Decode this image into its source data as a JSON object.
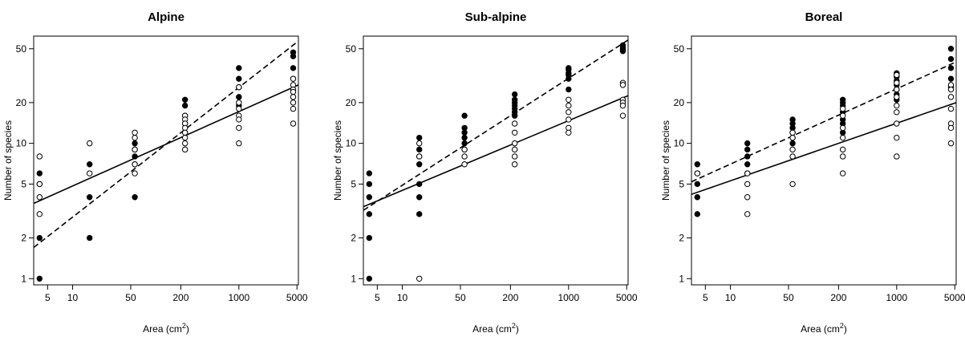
{
  "chart_data": [
    {
      "type": "scatter",
      "title": "Alpine",
      "xlabel": "Area (cm",
      "xlabel_sup": "2",
      "xlabel_close": ")",
      "ylabel": "Number of species",
      "x_scale": "log",
      "y_scale": "log",
      "xlim": [
        3.4,
        5200
      ],
      "ylim": [
        0.9,
        62
      ],
      "x_ticks": [
        5,
        10,
        50,
        200,
        1000,
        5000
      ],
      "x_tick_labels": [
        "5",
        "10",
        "50",
        "200",
        "1000",
        "5000"
      ],
      "y_ticks": [
        1,
        2,
        5,
        10,
        20,
        50
      ],
      "y_tick_labels": [
        "1",
        "2",
        "5",
        "10",
        "20",
        "50"
      ],
      "series": [
        {
          "marker": "filled-circle",
          "x": [
            4,
            4,
            4,
            4,
            16,
            16,
            16,
            56,
            56,
            56,
            56,
            56,
            225,
            225,
            225,
            225,
            225,
            1000,
            1000,
            1000,
            1000,
            1000,
            4500,
            4500,
            4500,
            4500
          ],
          "y": [
            6,
            5,
            2,
            1,
            7,
            4,
            2,
            10,
            9,
            8,
            7,
            4,
            21,
            19,
            16,
            14,
            12,
            36,
            30,
            26,
            22,
            19,
            47,
            44,
            36,
            30
          ]
        },
        {
          "marker": "open-circle",
          "x": [
            4,
            4,
            4,
            4,
            16,
            16,
            56,
            56,
            56,
            56,
            56,
            225,
            225,
            225,
            225,
            225,
            225,
            225,
            225,
            1000,
            1000,
            1000,
            1000,
            1000,
            1000,
            1000,
            4500,
            4500,
            4500,
            4500,
            4500,
            4500,
            4500,
            4500
          ],
          "y": [
            8,
            5,
            4,
            3,
            10,
            6,
            12,
            11,
            9,
            7,
            6,
            16,
            15,
            14,
            13,
            12,
            11,
            10,
            9,
            26,
            20,
            18,
            16,
            15,
            13,
            10,
            30,
            27,
            25,
            24,
            22,
            20,
            18,
            14
          ]
        }
      ],
      "fits": [
        {
          "style": "solid",
          "x": [
            3.4,
            5200
          ],
          "y": [
            3.6,
            27
          ]
        },
        {
          "style": "dashed",
          "x": [
            3.4,
            5200
          ],
          "y": [
            1.7,
            57
          ]
        }
      ]
    },
    {
      "type": "scatter",
      "title": "Sub-alpine",
      "xlabel": "Area (cm",
      "xlabel_sup": "2",
      "xlabel_close": ")",
      "ylabel": "Number of species",
      "x_scale": "log",
      "y_scale": "log",
      "xlim": [
        3.4,
        5200
      ],
      "ylim": [
        0.9,
        62
      ],
      "x_ticks": [
        5,
        10,
        50,
        200,
        1000,
        5000
      ],
      "x_tick_labels": [
        "5",
        "10",
        "50",
        "200",
        "1000",
        "5000"
      ],
      "y_ticks": [
        1,
        2,
        5,
        10,
        20,
        50
      ],
      "y_tick_labels": [
        "1",
        "2",
        "5",
        "10",
        "20",
        "50"
      ],
      "series": [
        {
          "marker": "filled-circle",
          "x": [
            4,
            4,
            4,
            4,
            4,
            4,
            16,
            16,
            16,
            16,
            16,
            16,
            16,
            56,
            56,
            56,
            56,
            56,
            56,
            225,
            225,
            225,
            225,
            225,
            225,
            225,
            1000,
            1000,
            1000,
            1000,
            1000,
            1000,
            4500,
            4500,
            4500,
            4500,
            4500
          ],
          "y": [
            6,
            5,
            4,
            3,
            2,
            1,
            11,
            9,
            8,
            7,
            5,
            4,
            3,
            16,
            13,
            12,
            11,
            10,
            9,
            23,
            21,
            20,
            19,
            18,
            17,
            16,
            36,
            35,
            33,
            32,
            30,
            25,
            53,
            51,
            50,
            49,
            48
          ]
        },
        {
          "marker": "open-circle",
          "x": [
            16,
            16,
            16,
            56,
            56,
            56,
            225,
            225,
            225,
            225,
            225,
            225,
            1000,
            1000,
            1000,
            1000,
            1000,
            1000,
            4500,
            4500,
            4500,
            4500,
            4500,
            4500
          ],
          "y": [
            10,
            8,
            1,
            9,
            8,
            7,
            14,
            12,
            10,
            9,
            8,
            7,
            21,
            19,
            17,
            15,
            13,
            12,
            28,
            27,
            21,
            20,
            19,
            16
          ]
        }
      ],
      "fits": [
        {
          "style": "solid",
          "x": [
            3.4,
            5200
          ],
          "y": [
            3.4,
            22.5
          ]
        },
        {
          "style": "dashed",
          "x": [
            3.4,
            5200
          ],
          "y": [
            3.2,
            58
          ]
        }
      ]
    },
    {
      "type": "scatter",
      "title": "Boreal",
      "xlabel": "Area (cm",
      "xlabel_sup": "2",
      "xlabel_close": ")",
      "ylabel": "Number of species",
      "x_scale": "log",
      "y_scale": "log",
      "xlim": [
        3.4,
        5200
      ],
      "ylim": [
        0.9,
        62
      ],
      "x_ticks": [
        5,
        10,
        50,
        200,
        1000,
        5000
      ],
      "x_tick_labels": [
        "5",
        "10",
        "50",
        "200",
        "1000",
        "5000"
      ],
      "y_ticks": [
        1,
        2,
        5,
        10,
        20,
        50
      ],
      "y_tick_labels": [
        "1",
        "2",
        "5",
        "10",
        "20",
        "50"
      ],
      "series": [
        {
          "marker": "filled-circle",
          "x": [
            4,
            4,
            4,
            4,
            4,
            16,
            16,
            16,
            16,
            16,
            56,
            56,
            56,
            56,
            56,
            56,
            225,
            225,
            225,
            225,
            225,
            225,
            225,
            1000,
            1000,
            1000,
            1000,
            1000,
            1000,
            1000,
            4500,
            4500,
            4500,
            4500,
            4500
          ],
          "y": [
            7,
            6,
            5,
            4,
            3,
            10,
            9,
            8,
            7,
            6,
            15,
            14,
            13,
            12,
            11,
            10,
            21,
            20,
            19,
            17,
            15,
            14,
            12,
            33,
            31,
            29,
            27,
            25,
            23,
            21,
            50,
            42,
            36,
            30,
            26
          ]
        },
        {
          "marker": "open-circle",
          "x": [
            4,
            16,
            16,
            16,
            16,
            56,
            56,
            56,
            56,
            56,
            225,
            225,
            225,
            225,
            225,
            225,
            225,
            1000,
            1000,
            1000,
            1000,
            1000,
            1000,
            1000,
            1000,
            1000,
            4500,
            4500,
            4500,
            4500,
            4500,
            4500,
            4500
          ],
          "y": [
            6,
            6,
            5,
            4,
            3,
            12,
            11,
            9,
            8,
            5,
            18,
            16,
            13,
            11,
            9,
            8,
            6,
            32,
            28,
            25,
            22,
            19,
            17,
            14,
            11,
            8,
            27,
            25,
            22,
            18,
            14,
            13,
            10
          ]
        }
      ],
      "fits": [
        {
          "style": "solid",
          "x": [
            3.4,
            5200
          ],
          "y": [
            4.2,
            20
          ]
        },
        {
          "style": "dashed",
          "x": [
            3.4,
            5200
          ],
          "y": [
            5.2,
            40
          ]
        }
      ]
    }
  ]
}
